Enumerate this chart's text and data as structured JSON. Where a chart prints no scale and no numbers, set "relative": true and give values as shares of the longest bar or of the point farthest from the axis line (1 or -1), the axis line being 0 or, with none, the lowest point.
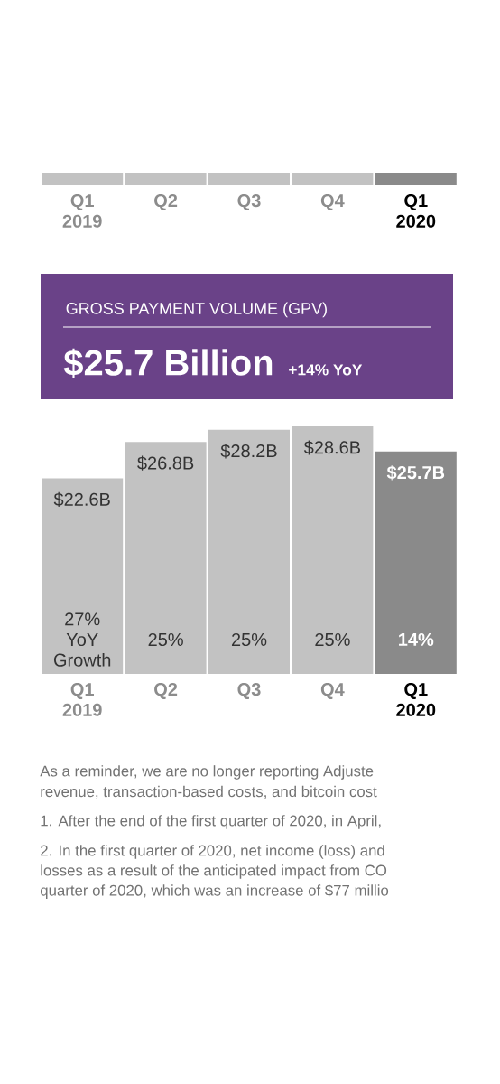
{
  "chart_data": [
    {
      "type": "bar",
      "relative": true,
      "categories": [
        "Q1 2019",
        "Q2",
        "Q3",
        "Q4",
        "Q1 2020"
      ],
      "values": [
        1,
        1,
        1,
        1,
        1
      ],
      "colors": [
        "#c2c2c2",
        "#c2c2c2",
        "#c2c2c2",
        "#c2c2c2",
        "#8a8a8a"
      ]
    },
    {
      "type": "bar",
      "title": "GROSS PAYMENT VOLUME (GPV)",
      "subtitle": "$25.7 Billion",
      "categories": [
        "Q1 2019",
        "Q2",
        "Q3",
        "Q4",
        "Q1 2020"
      ],
      "values": [
        22.6,
        26.8,
        28.2,
        28.6,
        25.7
      ],
      "colors": [
        "#c2c2c2",
        "#c2c2c2",
        "#c2c2c2",
        "#c2c2c2",
        "#8a8a8a"
      ],
      "value_labels": [
        "$22.6B",
        "$26.8B",
        "$28.2B",
        "$28.6B",
        "$25.7B"
      ],
      "annotations": [
        "+14% YoY",
        "27% YoY Growth",
        "25%",
        "25%",
        "25%",
        "14%",
        "As a reminder, we are no longer reporting Adjuste",
        "revenue, transaction-based costs, and bitcoin cost",
        "1. After the end of the first quarter of 2020, in April,",
        "2. In the first quarter of 2020, net income (loss) and",
        "losses as a result of the anticipated impact from CO",
        "quarter of 2020, which was an increase of $77 millio"
      ]
    }
  ]
}
